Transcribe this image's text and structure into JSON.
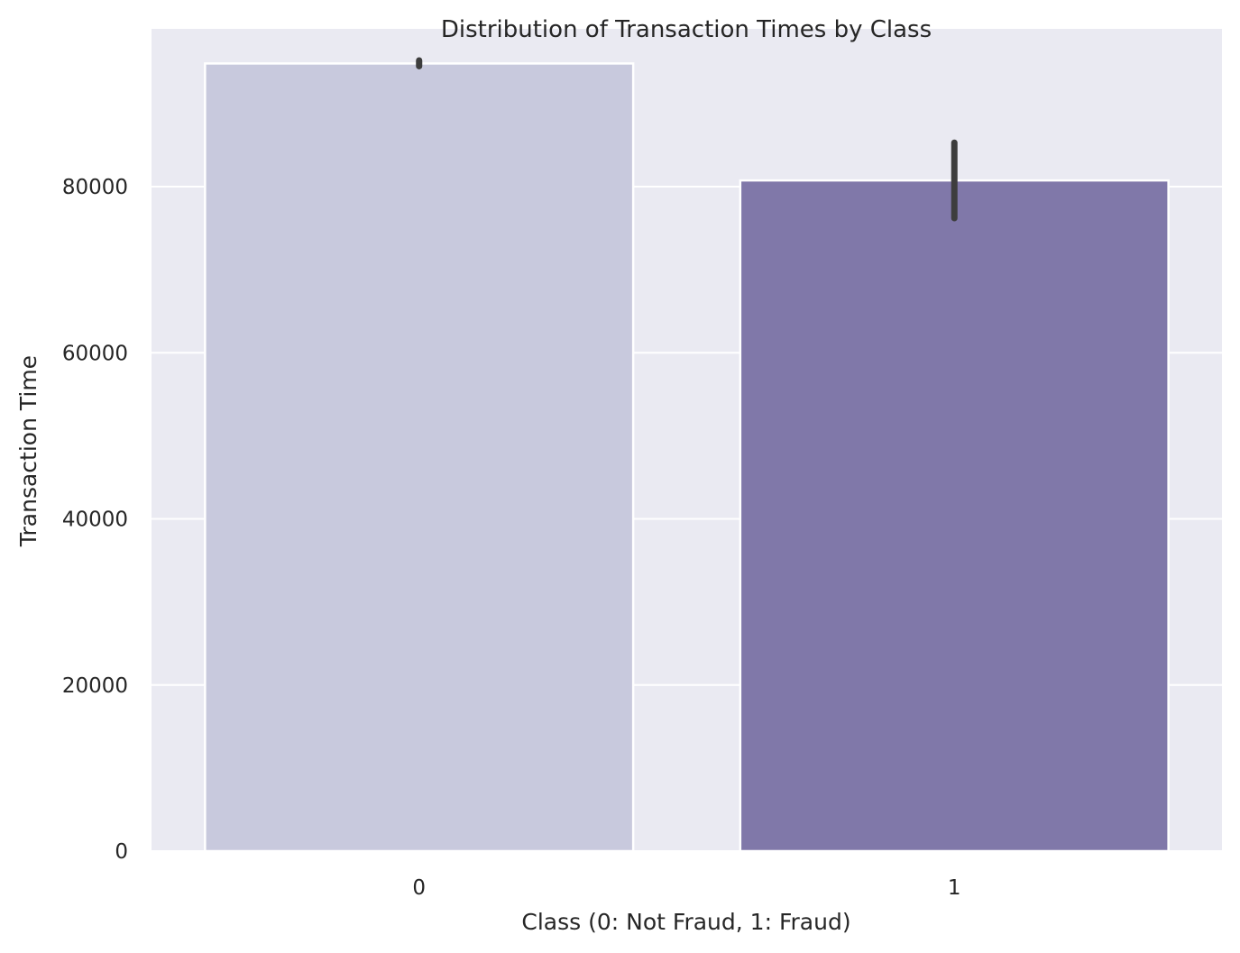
{
  "chart_data": {
    "type": "bar",
    "title": "Distribution of Transaction Times by Class",
    "xlabel": "Class (0: Not Fraud, 1: Fraud)",
    "ylabel": "Transaction Time",
    "categories": [
      "0",
      "1"
    ],
    "values": [
      94830,
      80750
    ],
    "error_bars": [
      {
        "low": 94500,
        "high": 95200
      },
      {
        "low": 76200,
        "high": 85300
      }
    ],
    "colors": [
      "#c8c9dd",
      "#8078a9"
    ],
    "ylim": [
      0,
      99000
    ],
    "yticks": [
      0,
      20000,
      40000,
      60000,
      80000
    ],
    "ytick_labels": [
      "0",
      "20000",
      "40000",
      "60000",
      "80000"
    ],
    "grid": true,
    "background": "#eaeaf2",
    "gridline_color": "#ffffff",
    "errorbar_color": "#3d3d3d"
  }
}
